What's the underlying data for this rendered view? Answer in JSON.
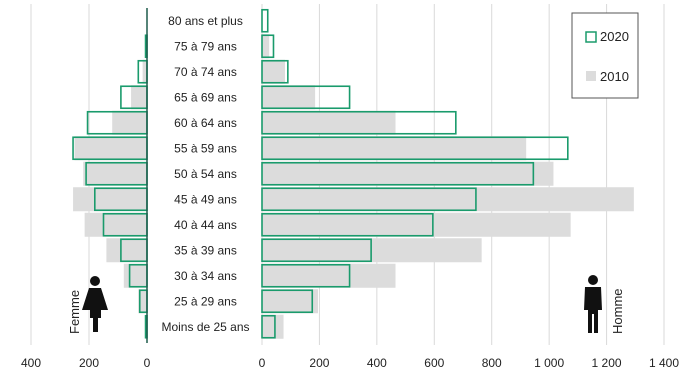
{
  "chart_data": {
    "type": "bar",
    "subtype": "population-pyramid",
    "categories": [
      "80 ans et plus",
      "75 à 79 ans",
      "70 à 74 ans",
      "65 à 69 ans",
      "60 à 64 ans",
      "55 à 59 ans",
      "50 à 54 ans",
      "45 à 49 ans",
      "40 à 44 ans",
      "35 à 39 ans",
      "30 à 34 ans",
      "25 à 29 ans",
      "Moins de 25 ans"
    ],
    "left_panel": {
      "label": "Femme",
      "xlim": [
        0,
        400
      ],
      "ticks": [
        400,
        200,
        0
      ],
      "series": [
        {
          "name": "2020",
          "values": [
            0,
            5,
            30,
            90,
            205,
            255,
            210,
            180,
            150,
            90,
            60,
            25,
            5
          ]
        },
        {
          "name": "2010",
          "values": [
            0,
            0,
            15,
            55,
            120,
            250,
            220,
            255,
            215,
            140,
            80,
            30,
            0
          ]
        }
      ]
    },
    "right_panel": {
      "label": "Homme",
      "xlim": [
        0,
        1400
      ],
      "ticks": [
        "0",
        "200",
        "400",
        "600",
        "800",
        "1 000",
        "1 200",
        "1 400"
      ],
      "tick_values": [
        0,
        200,
        400,
        600,
        800,
        1000,
        1200,
        1400
      ],
      "series": [
        {
          "name": "2020",
          "values": [
            20,
            40,
            90,
            305,
            675,
            1065,
            945,
            745,
            595,
            380,
            305,
            175,
            45
          ]
        },
        {
          "name": "2010",
          "values": [
            0,
            25,
            80,
            185,
            465,
            920,
            1015,
            1295,
            1075,
            765,
            465,
            195,
            75
          ]
        }
      ]
    },
    "legend": {
      "position": "top-right",
      "entries": [
        "2020",
        "2010"
      ]
    },
    "colors": {
      "2020": "#1a9b6c",
      "2010": "#dcdcdc",
      "axis": "#1f5b4c",
      "grid": "#d9d9d9"
    },
    "grid": true,
    "icons": {
      "left": "woman-icon",
      "right": "man-icon"
    }
  }
}
